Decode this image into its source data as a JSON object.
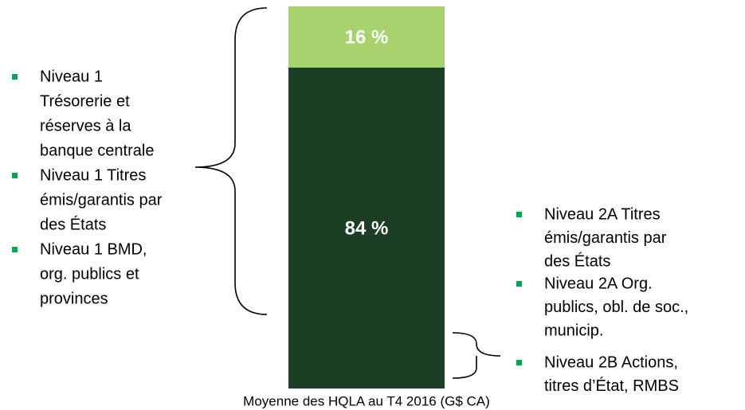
{
  "chart_data": {
    "type": "stacked-bar",
    "categories": [
      "Moyenne des HQLA au T4 2016 (G$ CA)"
    ],
    "series": [
      {
        "color": "#1b3e25",
        "values": [
          84
        ],
        "value_labels": [
          "84 %"
        ]
      },
      {
        "color": "#a8d26e",
        "values": [
          16
        ],
        "value_labels": [
          "16 %"
        ]
      }
    ],
    "ylim": [
      0,
      100
    ],
    "annotations": [
      {
        "bullet_color": "#00a651",
        "items": [
          [
            "Niveau 1",
            "Trésorerie et",
            "réserves à la",
            "banque centrale"
          ],
          [
            "Niveau 1 Titres",
            "émis/garantis par",
            "des États"
          ],
          [
            "Niveau 1 BMD,",
            "org. publics et",
            "provinces"
          ]
        ]
      },
      {
        "bullet_color": "#00a651",
        "items": [
          [
            "Niveau 2A Titres",
            "émis/garantis par",
            "des États"
          ],
          [
            "Niveau 2A Org.",
            "publics, obl. de soc.,",
            "municip."
          ],
          [
            "Niveau 2B Actions,",
            "titres d’État, RMBS"
          ]
        ]
      }
    ]
  }
}
